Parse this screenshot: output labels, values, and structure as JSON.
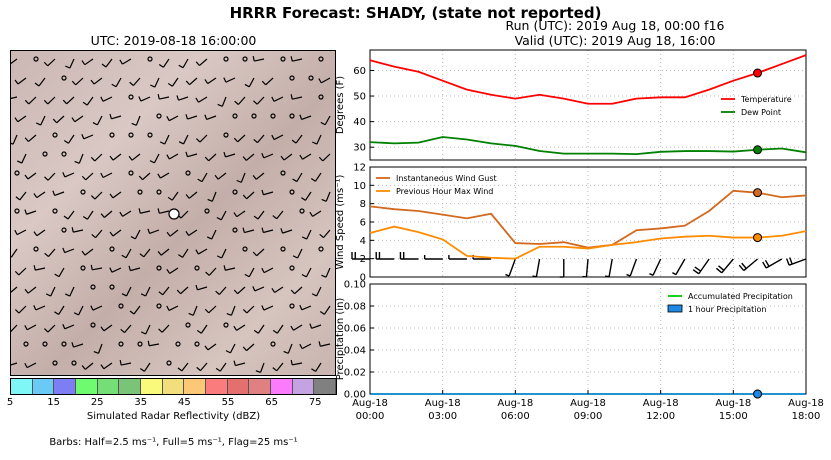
{
  "header": {
    "title": "HRRR Forecast: SHADY, (state not reported)",
    "run": "Run (UTC): 2019 Aug 18, 00:00 f16",
    "valid": "Valid (UTC): 2019 Aug 18, 16:00"
  },
  "map": {
    "title": "UTC: 2019-08-18 16:00:00",
    "colorbar": {
      "label": "Simulated Radar Reflectivity (dBZ)",
      "ticks": [
        "5",
        "15",
        "25",
        "35",
        "45",
        "55",
        "65",
        "75"
      ],
      "colors": [
        "#7ff7f7",
        "#6bc9f6",
        "#7d7df4",
        "#6ffb6f",
        "#76de76",
        "#79c479",
        "#f9f97b",
        "#f3de7c",
        "#fdc778",
        "#fa7c7c",
        "#e36f6f",
        "#e08080",
        "#fc7afc",
        "#c5a3e3",
        "#808080"
      ]
    },
    "barbs_note": "Barbs: Half=2.5 ms⁻¹, Full=5 ms⁻¹, Flag=25 ms⁻¹"
  },
  "chart_data": [
    {
      "type": "line",
      "ylabel": "Degrees (F)",
      "ylim": [
        25,
        68
      ],
      "yticks": [
        30,
        40,
        50,
        60
      ],
      "grid": true,
      "legend_position": "right",
      "x": [
        0,
        1,
        2,
        3,
        4,
        5,
        6,
        7,
        8,
        9,
        10,
        11,
        12,
        13,
        14,
        15,
        16,
        17,
        18
      ],
      "series": [
        {
          "name": "Temperature",
          "color": "#ff0000",
          "values": [
            64,
            61.5,
            59.5,
            56,
            52.5,
            50.5,
            49,
            50.5,
            49,
            47,
            47,
            49,
            49.5,
            49.5,
            52.5,
            56,
            59,
            62.5,
            66
          ]
        },
        {
          "name": "Dew Point",
          "color": "#008000",
          "values": [
            32,
            31.5,
            31.8,
            34,
            33,
            31.5,
            30.5,
            28.5,
            27.5,
            27.5,
            27.5,
            27.3,
            28.2,
            28.5,
            28.5,
            28.3,
            29,
            29.5,
            28
          ]
        }
      ],
      "marker_x": 16
    },
    {
      "type": "line",
      "ylabel": "Wind Speed (ms⁻¹)",
      "ylim": [
        0,
        12
      ],
      "yticks": [
        0,
        2,
        4,
        6,
        8,
        10,
        12
      ],
      "grid": true,
      "legend_position": "top-left",
      "x": [
        0,
        1,
        2,
        3,
        4,
        5,
        6,
        7,
        8,
        9,
        10,
        11,
        12,
        13,
        14,
        15,
        16,
        17,
        18
      ],
      "series": [
        {
          "name": "Instantaneous Wind Gust",
          "color": "#d2691e",
          "values": [
            7.7,
            7.4,
            7.2,
            6.8,
            6.4,
            6.9,
            3.7,
            3.6,
            3.8,
            3.2,
            3.5,
            5.1,
            5.3,
            5.6,
            7.2,
            9.4,
            9.2,
            8.7,
            8.9
          ]
        },
        {
          "name": "Previous Hour Max Wind",
          "color": "#ff8c00",
          "values": [
            4.8,
            5.5,
            4.9,
            4.1,
            2.3,
            2.1,
            2.0,
            3.3,
            3.3,
            3.1,
            3.5,
            3.8,
            4.2,
            4.4,
            4.5,
            4.3,
            4.3,
            4.5,
            5.0
          ]
        }
      ],
      "barbs": [
        {
          "x": 0,
          "speed": 4.8,
          "dir": 270
        },
        {
          "x": 1,
          "speed": 4.5,
          "dir": 270
        },
        {
          "x": 2,
          "speed": 4.0,
          "dir": 270
        },
        {
          "x": 3,
          "speed": 2.2,
          "dir": 270
        },
        {
          "x": 4,
          "speed": 2.0,
          "dir": 270
        },
        {
          "x": 5,
          "speed": 2.0,
          "dir": 270
        },
        {
          "x": 6,
          "speed": 1.8,
          "dir": 200
        },
        {
          "x": 7,
          "speed": 2.5,
          "dir": 190
        },
        {
          "x": 8,
          "speed": 2.5,
          "dir": 180
        },
        {
          "x": 9,
          "speed": 2.5,
          "dir": 185
        },
        {
          "x": 10,
          "speed": 2.6,
          "dir": 190
        },
        {
          "x": 11,
          "speed": 3.0,
          "dir": 200
        },
        {
          "x": 12,
          "speed": 3.2,
          "dir": 205
        },
        {
          "x": 13,
          "speed": 3.6,
          "dir": 210
        },
        {
          "x": 14,
          "speed": 3.8,
          "dir": 215
        },
        {
          "x": 15,
          "speed": 4.0,
          "dir": 220
        },
        {
          "x": 16,
          "speed": 4.2,
          "dir": 230
        },
        {
          "x": 17,
          "speed": 4.5,
          "dir": 240
        },
        {
          "x": 18,
          "speed": 5.0,
          "dir": 250
        }
      ],
      "marker_x": 16
    },
    {
      "type": "line",
      "ylabel": "Precipitation (in)",
      "ylim": [
        0,
        0.1
      ],
      "yticks": [
        "0.00",
        "0.02",
        "0.04",
        "0.06",
        "0.08",
        "0.10"
      ],
      "grid": true,
      "legend_position": "top-right",
      "xlim": [
        0,
        18
      ],
      "xticks": [
        {
          "x": 0,
          "date": "Aug-18",
          "time": "00:00"
        },
        {
          "x": 3,
          "date": "Aug-18",
          "time": "03:00"
        },
        {
          "x": 6,
          "date": "Aug-18",
          "time": "06:00"
        },
        {
          "x": 9,
          "date": "Aug-18",
          "time": "09:00"
        },
        {
          "x": 12,
          "date": "Aug-18",
          "time": "12:00"
        },
        {
          "x": 15,
          "date": "Aug-18",
          "time": "15:00"
        },
        {
          "x": 18,
          "date": "Aug-18",
          "time": "18:00"
        }
      ],
      "series": [
        {
          "name": "Accumulated Precipitation",
          "color": "#00cc00",
          "values": [
            0,
            0,
            0,
            0,
            0,
            0,
            0,
            0,
            0,
            0,
            0,
            0,
            0,
            0,
            0,
            0,
            0,
            0,
            0
          ]
        },
        {
          "name": "1 hour Precipitation",
          "color": "#1e88e5",
          "values": [
            0,
            0,
            0,
            0,
            0,
            0,
            0,
            0,
            0,
            0,
            0,
            0,
            0,
            0,
            0,
            0,
            0,
            0,
            0
          ]
        }
      ],
      "marker_x": 16
    }
  ]
}
